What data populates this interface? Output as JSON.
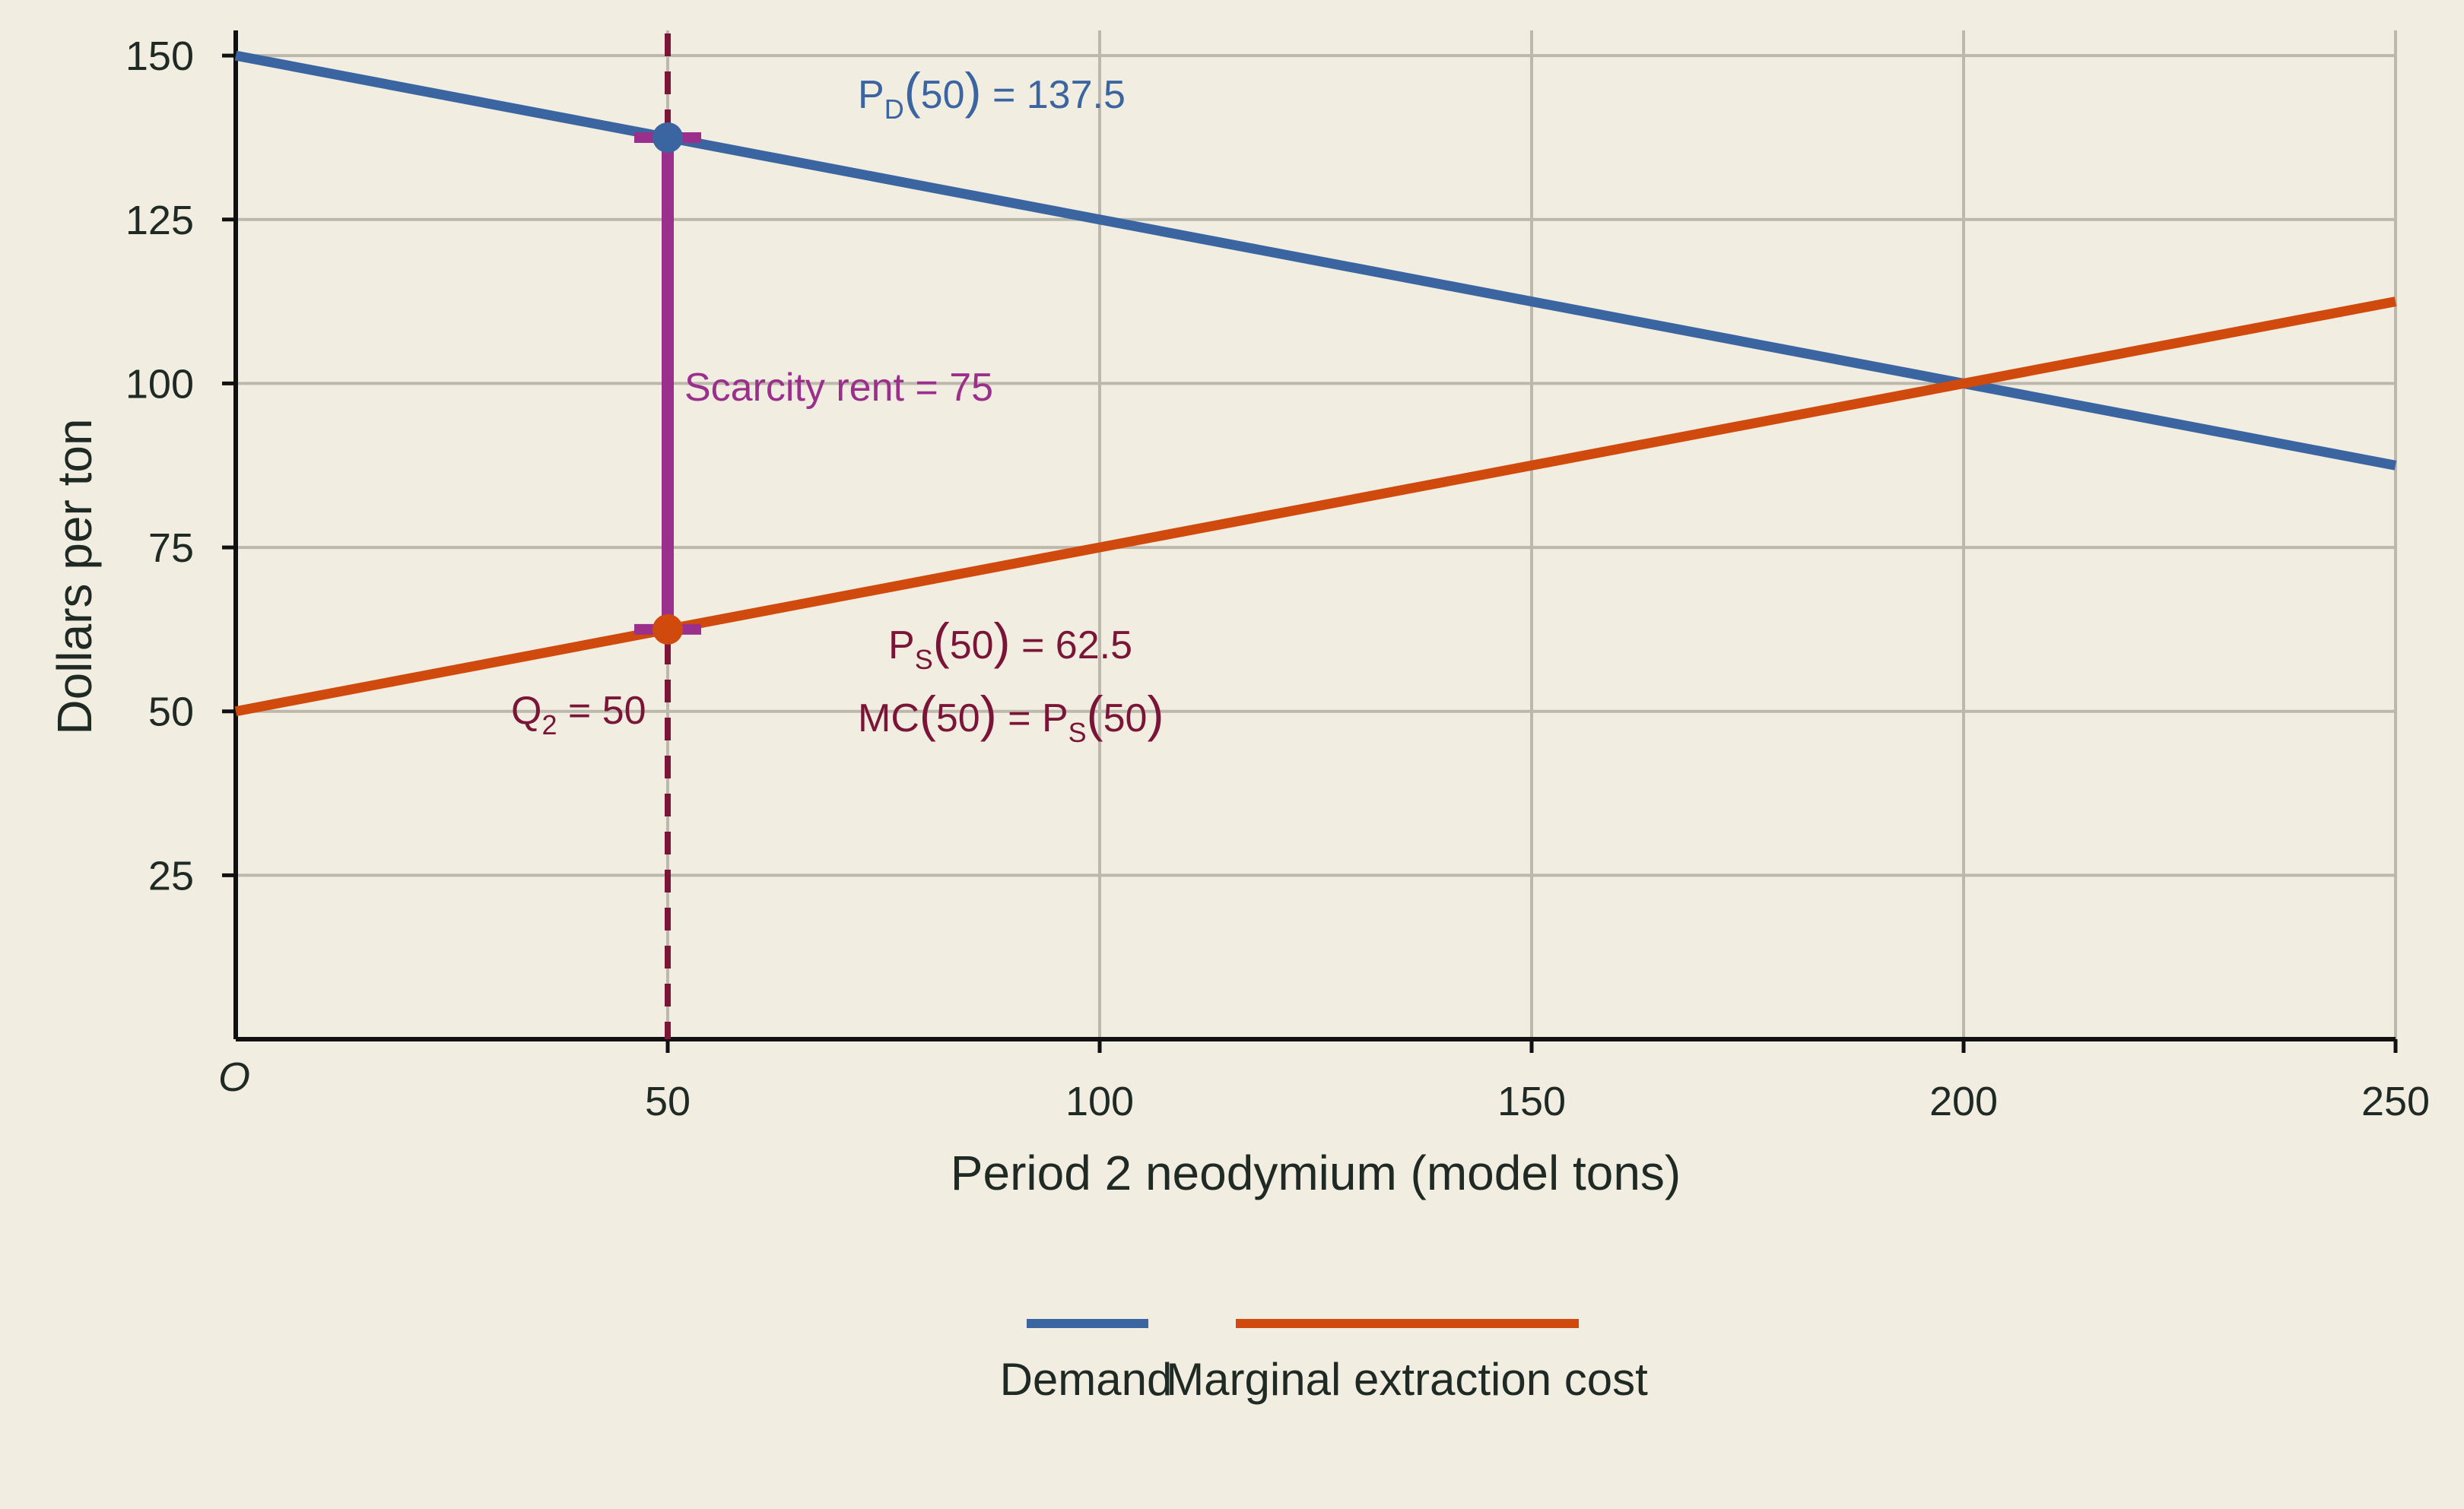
{
  "chart_data": {
    "type": "line",
    "xlabel": "Period 2 neodymium (model tons)",
    "ylabel": "Dollars per ton",
    "xlim": [
      0,
      250
    ],
    "ylim": [
      0,
      155
    ],
    "origin_label": "O",
    "x_ticks": [
      50,
      100,
      150,
      200,
      250
    ],
    "y_ticks": [
      25,
      50,
      75,
      100,
      125,
      150
    ],
    "grid": true,
    "legend_position": "bottom-center",
    "series": [
      {
        "name": "Demand",
        "color": "#3a65a0",
        "x": [
          0,
          250
        ],
        "y": [
          150,
          87.5
        ]
      },
      {
        "name": "Marginal extraction cost",
        "color": "#d04a0e",
        "x": [
          0,
          250
        ],
        "y": [
          50,
          112.5
        ]
      }
    ],
    "marker_line": {
      "x": 50,
      "color": "#7a1538",
      "style": "dashed"
    },
    "scarcity_bar": {
      "x": 50,
      "y_low": 62.5,
      "y_high": 137.5,
      "color": "#9b2f8c"
    },
    "points": [
      {
        "x": 50,
        "y": 137.5,
        "color": "#3a65a0"
      },
      {
        "x": 50,
        "y": 62.5,
        "color": "#d04a0e"
      }
    ],
    "annotations": {
      "demand_price": {
        "main": "P",
        "sub": "D",
        "arg": "50",
        "rest": " = 137.5",
        "color": "#3a65a0"
      },
      "scarcity_rent": {
        "text": "Scarcity rent = 75",
        "color": "#9b2f8c"
      },
      "supply_price": {
        "main": "P",
        "sub": "S",
        "arg": "50",
        "rest": " = 62.5",
        "color": "#7a1538"
      },
      "mc_equals": {
        "lead": "MC",
        "arg1": "50",
        "mid": " = P",
        "sub": "S",
        "arg2": "50",
        "color": "#7a1538"
      },
      "quantity": {
        "main": "Q",
        "sub": "2",
        "rest": " = 50",
        "color": "#7a1538"
      }
    }
  }
}
